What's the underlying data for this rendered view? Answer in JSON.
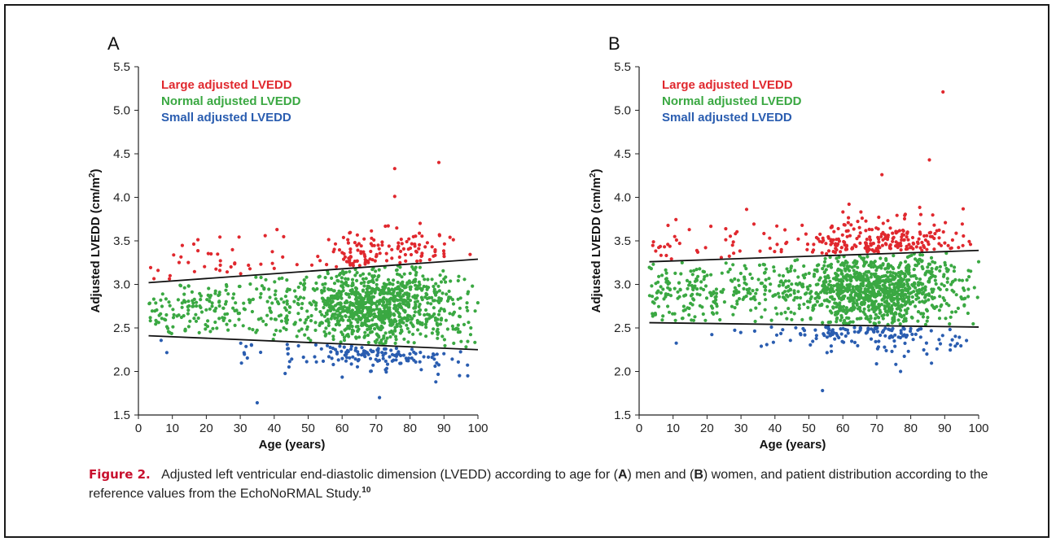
{
  "chart_data": [
    {
      "type": "scatter",
      "panel_label": "A",
      "xlabel": "Age (years)",
      "ylabel_main": "Adjusted LVEDD (cm/m",
      "ylabel_sup": "2",
      "ylabel_tail": ")",
      "xlim": [
        0,
        100
      ],
      "ylim": [
        1.5,
        5.5
      ],
      "xticks": [
        "0",
        "10",
        "20",
        "30",
        "40",
        "50",
        "60",
        "70",
        "80",
        "90",
        "100"
      ],
      "yticks": [
        "1.5",
        "2.0",
        "2.5",
        "3.0",
        "3.5",
        "4.0",
        "4.5",
        "5.0",
        "5.5"
      ],
      "grid": false,
      "legend_placement": "top-left",
      "series": [
        {
          "name": "Large adjusted LVEDD",
          "color": "#e0282e",
          "region": "above upper line",
          "n_points": 170,
          "y_max": 4.4
        },
        {
          "name": "Normal adjusted LVEDD",
          "color": "#3aa842",
          "region": "between lines",
          "n_points": 1150
        },
        {
          "name": "Small adjusted LVEDD",
          "color": "#2a5db0",
          "region": "below lower line",
          "n_points": 150,
          "y_min": 1.64
        }
      ],
      "reference_lines": [
        {
          "name": "upper",
          "x": [
            3,
            100
          ],
          "y": [
            3.02,
            3.29
          ]
        },
        {
          "name": "lower",
          "x": [
            3,
            100
          ],
          "y": [
            2.41,
            2.25
          ]
        }
      ],
      "notable_points": [
        {
          "x": 88.5,
          "y": 4.4
        },
        {
          "x": 75.5,
          "y": 4.33
        },
        {
          "x": 75.5,
          "y": 4.01
        },
        {
          "x": 35,
          "y": 1.64
        },
        {
          "x": 71,
          "y": 1.7
        },
        {
          "x": 97,
          "y": 1.95
        }
      ]
    },
    {
      "type": "scatter",
      "panel_label": "B",
      "xlabel": "Age (years)",
      "ylabel_main": "Adjusted LVEDD (cm/m",
      "ylabel_sup": "2",
      "ylabel_tail": ")",
      "xlim": [
        0,
        100
      ],
      "ylim": [
        1.5,
        5.5
      ],
      "xticks": [
        "0",
        "10",
        "20",
        "30",
        "40",
        "50",
        "60",
        "70",
        "80",
        "90",
        "100"
      ],
      "yticks": [
        "1.5",
        "2.0",
        "2.5",
        "3.0",
        "3.5",
        "4.0",
        "4.5",
        "5.0",
        "5.5"
      ],
      "grid": false,
      "legend_placement": "top-left",
      "series": [
        {
          "name": "Large adjusted LVEDD",
          "color": "#e0282e",
          "region": "above upper line",
          "n_points": 280,
          "y_max": 5.21
        },
        {
          "name": "Normal adjusted LVEDD",
          "color": "#3aa842",
          "region": "between lines",
          "n_points": 1250
        },
        {
          "name": "Small adjusted LVEDD",
          "color": "#2a5db0",
          "region": "below lower line",
          "n_points": 150,
          "y_min": 1.78
        }
      ],
      "reference_lines": [
        {
          "name": "upper",
          "x": [
            3,
            100
          ],
          "y": [
            3.26,
            3.39
          ]
        },
        {
          "name": "lower",
          "x": [
            3,
            100
          ],
          "y": [
            2.56,
            2.51
          ]
        }
      ],
      "notable_points": [
        {
          "x": 89.5,
          "y": 5.21
        },
        {
          "x": 85.5,
          "y": 4.43
        },
        {
          "x": 71.5,
          "y": 4.26
        },
        {
          "x": 54,
          "y": 1.78
        },
        {
          "x": 77,
          "y": 2.0
        },
        {
          "x": 100,
          "y": 3.26
        }
      ]
    }
  ],
  "caption": {
    "label": "Figure 2.",
    "t1": "Adjusted left ventricular end-diastolic dimension (LVEDD) according to age for (",
    "b1": "A",
    "t2": ") men and (",
    "b2": "B",
    "t3": ") women, and patient distribution according to the reference values from the EchoNoRMAL Study.",
    "ref": "10"
  }
}
